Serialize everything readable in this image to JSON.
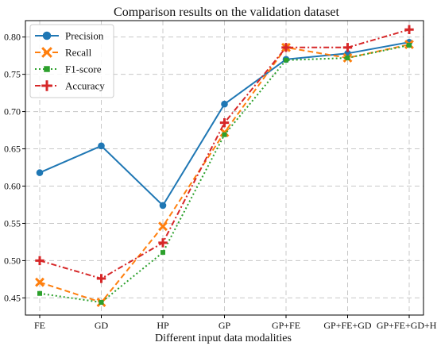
{
  "chart_data": {
    "type": "line",
    "title": "Comparison results on the validation dataset",
    "xlabel": "Different input data modalities",
    "ylabel": "",
    "categories": [
      "FE",
      "GD",
      "HP",
      "GP",
      "GP+FE",
      "GP+FE+GD",
      "GP+FE+GD+HP"
    ],
    "ylim": [
      0.427,
      0.822
    ],
    "yticks": [
      0.45,
      0.5,
      0.55,
      0.6,
      0.65,
      0.7,
      0.75,
      0.8
    ],
    "ytick_labels": [
      "0.45",
      "0.50",
      "0.55",
      "0.60",
      "0.65",
      "0.70",
      "0.75",
      "0.80"
    ],
    "grid": true,
    "legend_position": "top-left",
    "series": [
      {
        "name": "Precision",
        "values": [
          0.618,
          0.654,
          0.574,
          0.71,
          0.77,
          0.778,
          0.793
        ],
        "color": "#1f77b4",
        "dash": "solid",
        "marker": "circle"
      },
      {
        "name": "Recall",
        "values": [
          0.471,
          0.444,
          0.546,
          0.672,
          0.786,
          0.772,
          0.79
        ],
        "color": "#ff7f0e",
        "dash": "dashed",
        "marker": "x"
      },
      {
        "name": "F1-score",
        "values": [
          0.456,
          0.444,
          0.511,
          0.669,
          0.769,
          0.772,
          0.789
        ],
        "color": "#2ca02c",
        "dash": "dotted",
        "marker": "square"
      },
      {
        "name": "Accuracy",
        "values": [
          0.5,
          0.476,
          0.524,
          0.685,
          0.786,
          0.786,
          0.81
        ],
        "color": "#d62728",
        "dash": "dashdot",
        "marker": "plus"
      }
    ]
  }
}
